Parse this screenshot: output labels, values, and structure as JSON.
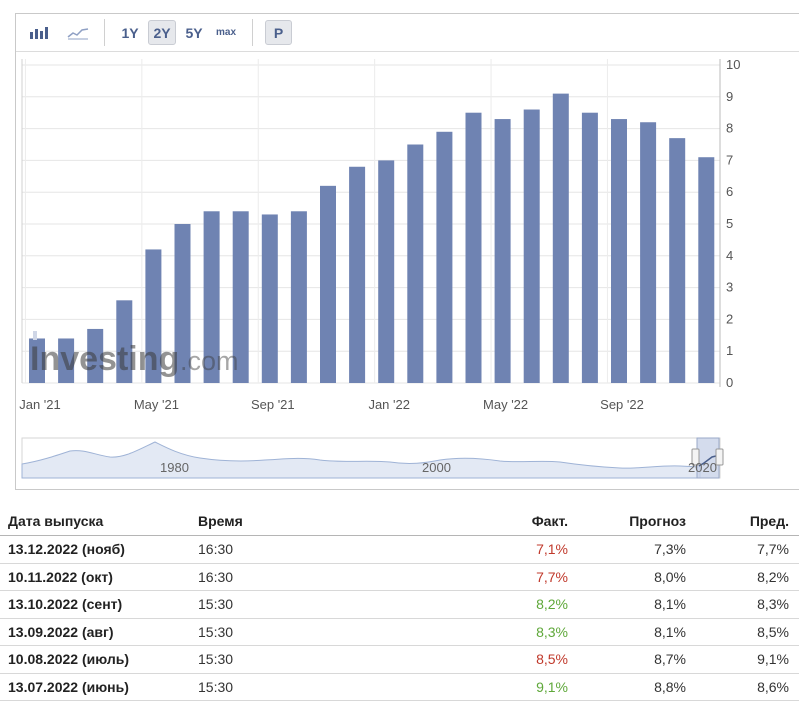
{
  "toolbar": {
    "buttons": [
      {
        "id": "bar-chart-icon",
        "label": ""
      },
      {
        "id": "line-chart-icon",
        "label": ""
      },
      {
        "id": "range-1y",
        "label": "1Y"
      },
      {
        "id": "range-2y",
        "label": "2Y",
        "active": true
      },
      {
        "id": "range-5y",
        "label": "5Y"
      },
      {
        "id": "range-max",
        "label": "max"
      },
      {
        "id": "percent-toggle",
        "label": "P"
      }
    ]
  },
  "watermark": {
    "brand": "Investing",
    "suffix": ".com"
  },
  "chart_data": {
    "type": "bar",
    "title": "",
    "xlabel": "",
    "ylabel": "",
    "ylim": [
      0,
      10
    ],
    "yticks": [
      0,
      1,
      2,
      3,
      4,
      5,
      6,
      7,
      8,
      9,
      10
    ],
    "x_tick_labels": [
      "Jan '21",
      "May '21",
      "Sep '21",
      "Jan '22",
      "May '22",
      "Sep '22"
    ],
    "categories": [
      "Jan '21",
      "Feb '21",
      "Mar '21",
      "Apr '21",
      "May '21",
      "Jun '21",
      "Jul '21",
      "Aug '21",
      "Sep '21",
      "Oct '21",
      "Nov '21",
      "Dec '21",
      "Jan '22",
      "Feb '22",
      "Mar '22",
      "Apr '22",
      "May '22",
      "Jun '22",
      "Jul '22",
      "Aug '22",
      "Sep '22",
      "Oct '22",
      "Nov '22",
      "Dec '22"
    ],
    "values": [
      1.4,
      1.4,
      1.7,
      2.6,
      4.2,
      5.0,
      5.4,
      5.4,
      5.3,
      5.4,
      6.2,
      6.8,
      7.0,
      7.5,
      7.9,
      8.5,
      8.3,
      8.6,
      9.1,
      8.5,
      8.3,
      8.2,
      7.7,
      7.1
    ],
    "grid": true,
    "bar_color": "#6f83b2",
    "navigator": {
      "labels": [
        "1980",
        "2000",
        "2020"
      ]
    }
  },
  "table": {
    "headers": {
      "date": "Дата выпуска",
      "time": "Время",
      "actual": "Факт.",
      "forecast": "Прогноз",
      "previous": "Пред."
    },
    "rows": [
      {
        "date": "13.12.2022 (нояб)",
        "time": "16:30",
        "actual": "7,1%",
        "actual_status": "red",
        "forecast": "7,3%",
        "previous": "7,7%"
      },
      {
        "date": "10.11.2022 (окт)",
        "time": "16:30",
        "actual": "7,7%",
        "actual_status": "red",
        "forecast": "8,0%",
        "previous": "8,2%"
      },
      {
        "date": "13.10.2022 (сент)",
        "time": "15:30",
        "actual": "8,2%",
        "actual_status": "green",
        "forecast": "8,1%",
        "previous": "8,3%"
      },
      {
        "date": "13.09.2022 (авг)",
        "time": "15:30",
        "actual": "8,3%",
        "actual_status": "green",
        "forecast": "8,1%",
        "previous": "8,5%"
      },
      {
        "date": "10.08.2022 (июль)",
        "time": "15:30",
        "actual": "8,5%",
        "actual_status": "red",
        "forecast": "8,7%",
        "previous": "9,1%"
      },
      {
        "date": "13.07.2022 (июнь)",
        "time": "15:30",
        "actual": "9,1%",
        "actual_status": "green",
        "forecast": "8,8%",
        "previous": "8,6%"
      }
    ]
  },
  "colors": {
    "red": "#c0392b",
    "green": "#5fa83a",
    "accent": "#4a5f8c"
  }
}
